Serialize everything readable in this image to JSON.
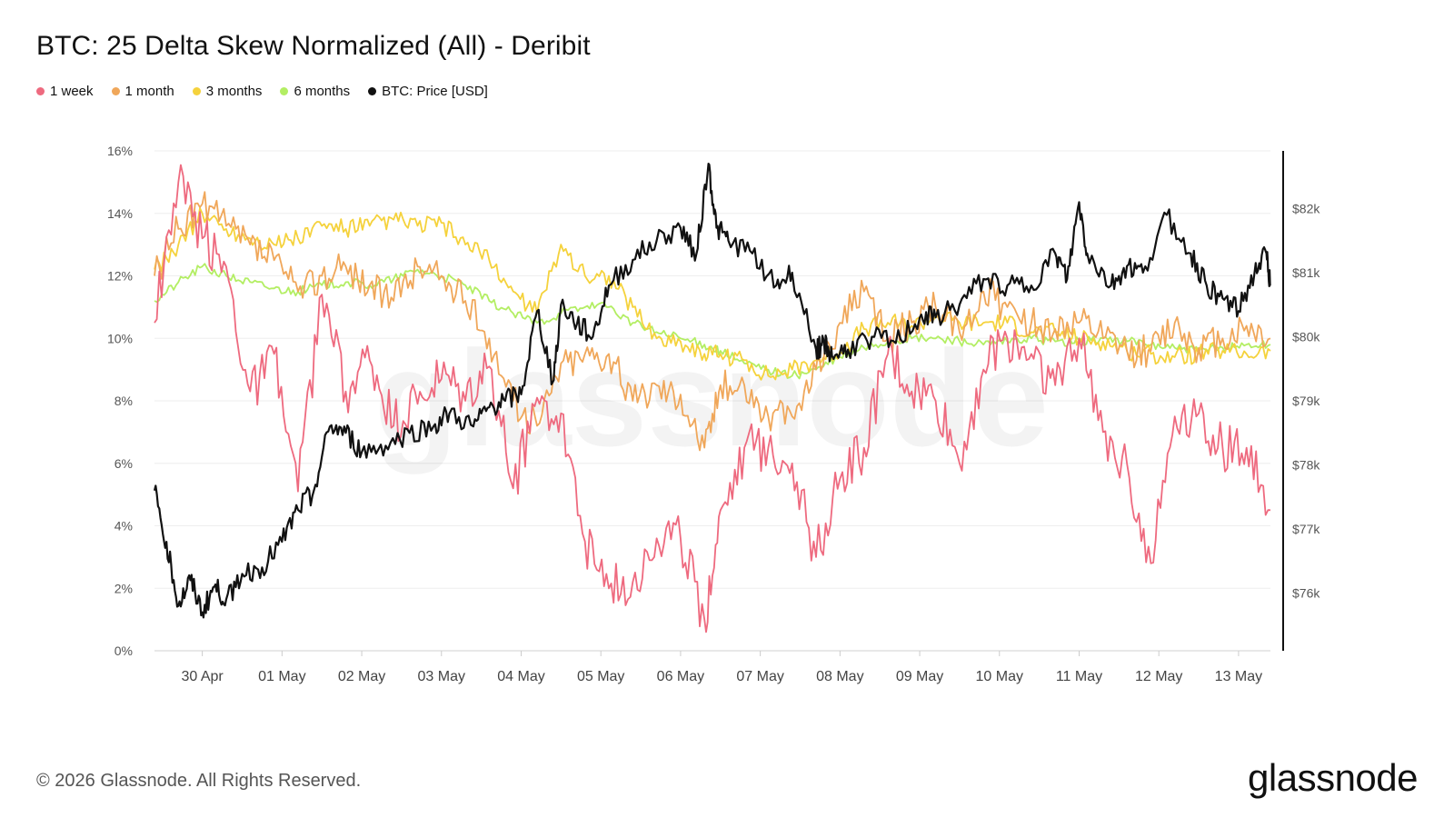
{
  "header": {
    "title": "BTC: 25 Delta Skew Normalized (All) - Deribit"
  },
  "legend": [
    {
      "label": "1 week",
      "color": "#ee6a7f"
    },
    {
      "label": "1 month",
      "color": "#f0a75a"
    },
    {
      "label": "3 months",
      "color": "#f5d23c"
    },
    {
      "label": "6 months",
      "color": "#b3ee63"
    },
    {
      "label": "BTC: Price [USD]",
      "color": "#111111"
    }
  ],
  "watermark": "glassnode",
  "footer": {
    "copyright": "© 2026 Glassnode. All Rights Reserved.",
    "brand": "glassnode"
  },
  "chart_data": {
    "type": "line",
    "title": "BTC: 25 Delta Skew Normalized (All) - Deribit",
    "xlabel": "",
    "ylabel_left": "",
    "ylabel_right": "",
    "x_ticks": [
      "30 Apr",
      "01 May",
      "02 May",
      "03 May",
      "04 May",
      "05 May",
      "06 May",
      "07 May",
      "08 May",
      "09 May",
      "10 May",
      "11 May",
      "12 May",
      "13 May"
    ],
    "x_range_days": [
      -0.6,
      13.4
    ],
    "y_left": {
      "ylim": [
        0,
        16
      ],
      "ticks": [
        "0%",
        "2%",
        "4%",
        "6%",
        "8%",
        "10%",
        "12%",
        "14%",
        "16%"
      ]
    },
    "y_right": {
      "ylim": [
        75.1,
        82.9
      ],
      "ticks": [
        "$76k",
        "$77k",
        "$78k",
        "$79k",
        "$80k",
        "$81k",
        "$82k"
      ]
    },
    "grid": true,
    "legend_position": "top-left",
    "series": [
      {
        "name": "1 week",
        "axis": "left",
        "color": "#ee6a7f",
        "x": [
          -0.6,
          -0.3,
          0,
          0.3,
          0.6,
          0.9,
          1.2,
          1.5,
          1.8,
          2.1,
          2.4,
          2.7,
          3.0,
          3.3,
          3.6,
          3.9,
          4.2,
          4.5,
          4.8,
          5.1,
          5.4,
          5.7,
          6.0,
          6.3,
          6.5,
          6.8,
          7.1,
          7.4,
          7.7,
          8.0,
          8.3,
          8.6,
          8.9,
          9.2,
          9.5,
          9.8,
          10.1,
          10.4,
          10.7,
          11.0,
          11.3,
          11.6,
          11.9,
          12.2,
          12.5,
          12.8,
          13.1,
          13.4
        ],
        "y": [
          10.5,
          15.0,
          13.2,
          12.3,
          8.3,
          9.5,
          5.1,
          11.4,
          8.3,
          9.3,
          7.2,
          7.9,
          8.7,
          8.0,
          9.1,
          5.2,
          8.1,
          7.6,
          3.5,
          2.0,
          2.2,
          3.6,
          3.6,
          1.0,
          4.5,
          6.5,
          6.5,
          6.0,
          3.0,
          5.5,
          6.5,
          9.5,
          8.3,
          8.0,
          6.0,
          9.0,
          10.0,
          9.5,
          8.5,
          10.0,
          7.0,
          6.0,
          2.8,
          7.5,
          7.6,
          6.5,
          6.5,
          4.5
        ]
      },
      {
        "name": "1 month",
        "axis": "left",
        "color": "#f0a75a",
        "x": [
          -0.6,
          -0.3,
          0,
          0.3,
          0.6,
          0.9,
          1.2,
          1.5,
          1.8,
          2.1,
          2.4,
          2.7,
          3.0,
          3.3,
          3.6,
          3.9,
          4.2,
          4.5,
          4.8,
          5.1,
          5.4,
          5.7,
          6.0,
          6.3,
          6.5,
          6.8,
          7.1,
          7.4,
          7.7,
          8.0,
          8.3,
          8.6,
          8.9,
          9.2,
          9.5,
          9.8,
          10.1,
          10.4,
          10.7,
          11.0,
          11.3,
          11.6,
          11.9,
          12.2,
          12.5,
          12.8,
          13.1,
          13.4
        ],
        "y": [
          12.0,
          13.5,
          14.3,
          13.6,
          13.0,
          12.5,
          11.5,
          12.0,
          12.3,
          11.7,
          11.2,
          12.3,
          12.0,
          11.2,
          10.0,
          8.0,
          7.2,
          9.2,
          9.5,
          9.5,
          8.0,
          8.5,
          8.2,
          6.5,
          8.5,
          8.5,
          7.5,
          7.5,
          9.0,
          10.5,
          11.5,
          10.0,
          10.5,
          11.0,
          10.2,
          11.5,
          11.0,
          10.5,
          10.3,
          10.5,
          10.0,
          9.6,
          9.6,
          10.5,
          9.7,
          10.0,
          10.4,
          10.0
        ]
      },
      {
        "name": "3 months",
        "axis": "left",
        "color": "#f5d23c",
        "x": [
          -0.6,
          -0.3,
          0,
          0.3,
          0.6,
          0.9,
          1.2,
          1.5,
          1.8,
          2.1,
          2.4,
          2.7,
          3.0,
          3.3,
          3.6,
          3.9,
          4.2,
          4.5,
          4.8,
          5.1,
          5.4,
          5.7,
          6.0,
          6.3,
          6.5,
          6.8,
          7.1,
          7.4,
          7.7,
          8.0,
          8.3,
          8.6,
          8.9,
          9.2,
          9.5,
          9.8,
          10.1,
          10.4,
          10.7,
          11.0,
          11.3,
          11.6,
          11.9,
          12.2,
          12.5,
          12.8,
          13.1,
          13.4
        ],
        "y": [
          12.2,
          13.0,
          14.0,
          13.5,
          13.2,
          13.0,
          13.2,
          13.6,
          13.5,
          13.6,
          13.8,
          13.6,
          13.7,
          13.0,
          12.5,
          11.5,
          10.8,
          13.0,
          12.0,
          12.0,
          11.0,
          10.0,
          9.9,
          9.5,
          9.5,
          9.3,
          8.8,
          9.0,
          9.3,
          9.6,
          10.3,
          10.5,
          10.4,
          10.7,
          10.5,
          10.5,
          10.5,
          10.2,
          10.2,
          10.0,
          9.9,
          9.6,
          9.5,
          9.4,
          9.5,
          9.6,
          9.5,
          9.6
        ]
      },
      {
        "name": "6 months",
        "axis": "left",
        "color": "#b3ee63",
        "x": [
          -0.6,
          -0.3,
          0,
          0.3,
          0.6,
          0.9,
          1.2,
          1.5,
          1.8,
          2.1,
          2.4,
          2.7,
          3.0,
          3.3,
          3.6,
          3.9,
          4.2,
          4.5,
          4.8,
          5.1,
          5.4,
          5.7,
          6.0,
          6.3,
          6.5,
          6.8,
          7.1,
          7.4,
          7.7,
          8.0,
          8.3,
          8.6,
          8.9,
          9.2,
          9.5,
          9.8,
          10.1,
          10.4,
          10.7,
          11.0,
          11.3,
          11.6,
          11.9,
          12.2,
          12.5,
          12.8,
          13.1,
          13.4
        ],
        "y": [
          11.2,
          11.8,
          12.3,
          12.0,
          11.8,
          11.6,
          11.5,
          11.7,
          11.8,
          11.7,
          11.9,
          12.2,
          12.0,
          11.7,
          11.2,
          10.8,
          10.5,
          10.8,
          11.0,
          11.0,
          10.5,
          10.2,
          10.0,
          9.8,
          9.6,
          9.2,
          9.0,
          8.8,
          9.0,
          9.4,
          9.7,
          9.9,
          10.0,
          10.0,
          9.9,
          9.8,
          9.9,
          10.0,
          9.9,
          9.9,
          10.0,
          9.9,
          9.8,
          9.7,
          9.6,
          9.7,
          9.8,
          9.8
        ]
      },
      {
        "name": "BTC: Price [USD]",
        "axis": "right",
        "color": "#111111",
        "x": [
          -0.6,
          -0.45,
          -0.3,
          -0.15,
          0,
          0.15,
          0.3,
          0.5,
          0.75,
          1.0,
          1.2,
          1.4,
          1.6,
          1.8,
          2.0,
          2.3,
          2.6,
          2.9,
          3.1,
          3.4,
          3.6,
          3.8,
          4.0,
          4.2,
          4.4,
          4.5,
          4.7,
          4.9,
          5.1,
          5.4,
          5.7,
          6.0,
          6.2,
          6.35,
          6.45,
          6.6,
          6.9,
          7.2,
          7.4,
          7.7,
          7.8,
          7.9,
          8.1,
          8.4,
          8.7,
          9.0,
          9.2,
          9.5,
          9.8,
          10.1,
          10.4,
          10.7,
          10.85,
          11.0,
          11.1,
          11.4,
          11.6,
          11.8,
          12.1,
          12.4,
          12.6,
          12.8,
          13.0,
          13.2,
          13.35,
          13.4
        ],
        "y": [
          77.6,
          76.8,
          75.8,
          76.2,
          75.7,
          76.1,
          75.9,
          76.3,
          76.4,
          76.8,
          77.3,
          77.6,
          78.6,
          78.5,
          78.2,
          78.3,
          78.5,
          78.6,
          78.8,
          78.6,
          78.9,
          79.0,
          79.1,
          80.4,
          79.3,
          80.5,
          80.2,
          80.0,
          80.8,
          81.2,
          81.5,
          81.7,
          81.3,
          82.7,
          81.7,
          81.5,
          81.3,
          80.8,
          81.0,
          79.8,
          79.9,
          79.7,
          79.8,
          80.0,
          79.9,
          80.3,
          80.3,
          80.5,
          80.9,
          80.8,
          80.8,
          81.3,
          80.9,
          82.1,
          81.3,
          80.8,
          81.1,
          81.0,
          81.9,
          81.3,
          80.8,
          80.6,
          80.4,
          81.0,
          81.3,
          80.8
        ]
      }
    ]
  }
}
